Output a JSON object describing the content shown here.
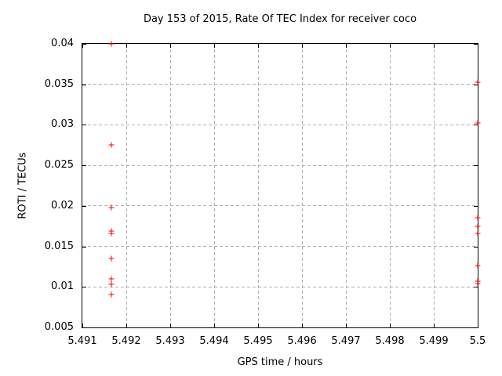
{
  "chart_data": {
    "type": "scatter",
    "title": "Day 153 of 2015, Rate Of TEC Index for receiver coco",
    "xlabel": "GPS time / hours",
    "ylabel": "ROTI / TECUs",
    "xlim": [
      5.491,
      5.5
    ],
    "ylim": [
      0.005,
      0.04
    ],
    "grid": true,
    "legend_position": "none",
    "marker": "plus",
    "colors": {
      "marker": "#ff0000",
      "grid": "#b0b0b0",
      "axis": "#000000",
      "background": "#ffffff",
      "text": "#000000"
    },
    "xticks": [
      {
        "value": 5.491,
        "label": "5.491"
      },
      {
        "value": 5.492,
        "label": "5.492"
      },
      {
        "value": 5.493,
        "label": "5.493"
      },
      {
        "value": 5.494,
        "label": "5.494"
      },
      {
        "value": 5.495,
        "label": "5.495"
      },
      {
        "value": 5.496,
        "label": "5.496"
      },
      {
        "value": 5.497,
        "label": "5.497"
      },
      {
        "value": 5.498,
        "label": "5.498"
      },
      {
        "value": 5.499,
        "label": "5.499"
      },
      {
        "value": 5.5,
        "label": "5.5"
      }
    ],
    "yticks": [
      {
        "value": 0.005,
        "label": "0.005"
      },
      {
        "value": 0.01,
        "label": "0.01"
      },
      {
        "value": 0.015,
        "label": "0.015"
      },
      {
        "value": 0.02,
        "label": "0.02"
      },
      {
        "value": 0.025,
        "label": "0.025"
      },
      {
        "value": 0.03,
        "label": "0.03"
      },
      {
        "value": 0.035,
        "label": "0.035"
      },
      {
        "value": 0.04,
        "label": "0.04"
      }
    ],
    "series": [
      {
        "points": [
          [
            5.491667,
            0.04
          ],
          [
            5.491667,
            0.0275
          ],
          [
            5.491667,
            0.0198
          ],
          [
            5.491667,
            0.0169
          ],
          [
            5.491667,
            0.0166
          ],
          [
            5.491667,
            0.0135
          ],
          [
            5.491667,
            0.011
          ],
          [
            5.491667,
            0.0103
          ],
          [
            5.491667,
            0.0091
          ],
          [
            5.5,
            0.0353
          ],
          [
            5.5,
            0.0302
          ],
          [
            5.5,
            0.0185
          ],
          [
            5.5,
            0.0175
          ],
          [
            5.5,
            0.0166
          ],
          [
            5.5,
            0.0126
          ],
          [
            5.5,
            0.0107
          ],
          [
            5.5,
            0.0104
          ]
        ]
      }
    ]
  }
}
